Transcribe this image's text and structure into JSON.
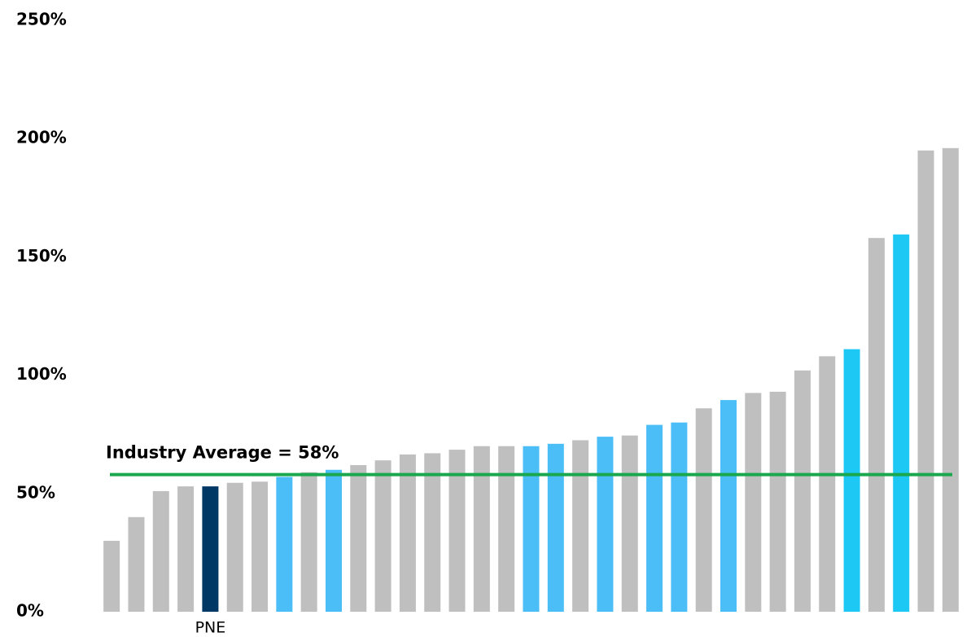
{
  "chart_data": {
    "type": "bar",
    "categories": [
      null,
      null,
      null,
      null,
      "PNE",
      null,
      null,
      null,
      null,
      null,
      null,
      null,
      null,
      null,
      null,
      null,
      null,
      null,
      null,
      null,
      null,
      null,
      null,
      null,
      null,
      null,
      null,
      null,
      null,
      null,
      null,
      null,
      null,
      null,
      null
    ],
    "values": [
      30,
      40,
      51,
      53,
      53,
      54.5,
      55,
      57,
      59,
      60,
      62,
      64,
      66.5,
      67,
      68.5,
      70,
      70,
      70,
      71,
      72.5,
      74,
      74.5,
      79,
      80,
      86,
      89.5,
      92.5,
      93,
      102,
      108,
      111,
      158,
      159.5,
      195,
      196
    ],
    "colors": [
      "#bfbfbf",
      "#bfbfbf",
      "#bfbfbf",
      "#bfbfbf",
      "#003865",
      "#bfbfbf",
      "#bfbfbf",
      "#4bbef7",
      "#bfbfbf",
      "#4bbef7",
      "#bfbfbf",
      "#bfbfbf",
      "#bfbfbf",
      "#bfbfbf",
      "#bfbfbf",
      "#bfbfbf",
      "#bfbfbf",
      "#4bbef7",
      "#4bbef7",
      "#bfbfbf",
      "#4bbef7",
      "#bfbfbf",
      "#4bbef7",
      "#4bbef7",
      "#bfbfbf",
      "#4bbef7",
      "#bfbfbf",
      "#bfbfbf",
      "#bfbfbf",
      "#bfbfbf",
      "#1ec8f5",
      "#bfbfbf",
      "#1ec8f5",
      "#bfbfbf",
      "#bfbfbf"
    ],
    "ylim": [
      0,
      250
    ],
    "yticks": [
      {
        "value": 0,
        "label": "0%"
      },
      {
        "value": 50,
        "label": "50%"
      },
      {
        "value": 100,
        "label": "100%"
      },
      {
        "value": 150,
        "label": "150%"
      },
      {
        "value": 200,
        "label": "200%"
      },
      {
        "value": 250,
        "label": "250%"
      }
    ],
    "grid": false,
    "reference_line": {
      "value": 58,
      "label": "Industry Average = 58%",
      "color": "#1aa84f"
    }
  }
}
